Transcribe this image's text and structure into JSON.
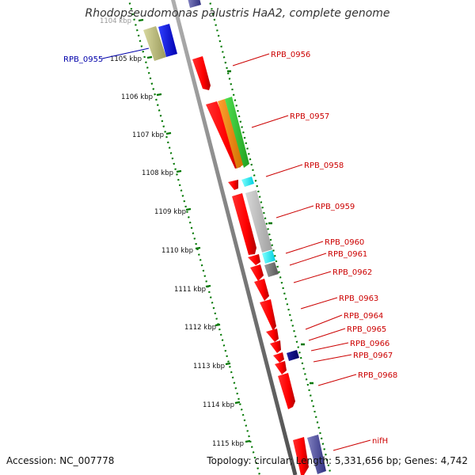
{
  "title": "Rhodopseudomonas palustris HaA2, complete genome",
  "accession_text": "Accession: NC_007778",
  "summary_text": "Topology: circular; Length: 5,331,656 bp; Genes: 4,742",
  "colors": {
    "forward_gene": "#ff0000",
    "label_red": "#cc0000",
    "label_blue": "#0000aa",
    "tick_green": "#007700",
    "backbone": "#888888"
  },
  "kbp_ticks": [
    "1104 kbp",
    "1105 kbp",
    "1106 kbp",
    "1107 kbp",
    "1108 kbp",
    "1109 kbp",
    "1110 kbp",
    "1111 kbp",
    "1112 kbp",
    "1113 kbp",
    "1114 kbp",
    "1115 kbp"
  ],
  "gene_labels": [
    {
      "text": "RPB_0955",
      "color": "#0000aa"
    },
    {
      "text": "RPB_0956",
      "color": "#cc0000"
    },
    {
      "text": "RPB_0957",
      "color": "#cc0000"
    },
    {
      "text": "RPB_0958",
      "color": "#cc0000"
    },
    {
      "text": "RPB_0959",
      "color": "#cc0000"
    },
    {
      "text": "RPB_0960",
      "color": "#cc0000"
    },
    {
      "text": "RPB_0961",
      "color": "#cc0000"
    },
    {
      "text": "RPB_0962",
      "color": "#cc0000"
    },
    {
      "text": "RPB_0963",
      "color": "#cc0000"
    },
    {
      "text": "RPB_0964",
      "color": "#cc0000"
    },
    {
      "text": "RPB_0965",
      "color": "#cc0000"
    },
    {
      "text": "RPB_0966",
      "color": "#cc0000"
    },
    {
      "text": "RPB_0967",
      "color": "#cc0000"
    },
    {
      "text": "RPB_0968",
      "color": "#cc0000"
    },
    {
      "text": "nifH",
      "color": "#cc0000"
    }
  ]
}
